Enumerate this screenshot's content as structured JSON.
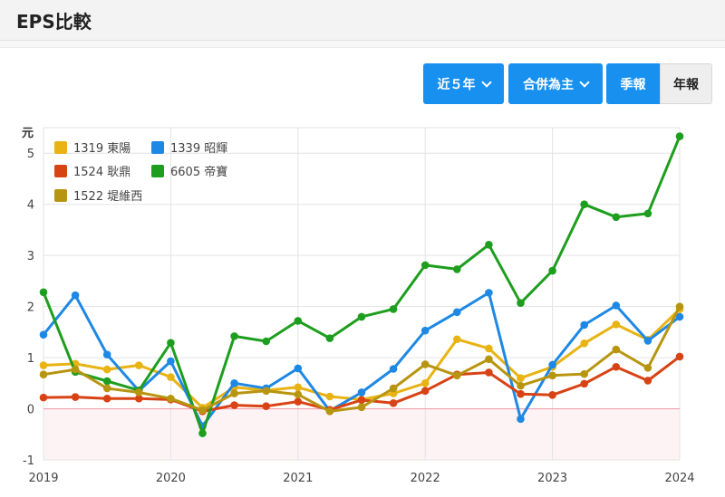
{
  "page": {
    "title": "EPS比較"
  },
  "controls": {
    "period_label": "近５年",
    "basis_label": "合併為主",
    "quarterly_label": "季報",
    "annual_label": "年報"
  },
  "chart_data": {
    "type": "line",
    "ylabel": "元",
    "ylim": [
      -1,
      5.5
    ],
    "yticks": [
      "-1",
      "0",
      "1",
      "2",
      "3",
      "4",
      "5"
    ],
    "xtick_labels": [
      "2019",
      "2020",
      "2021",
      "2022",
      "2023",
      "2024"
    ],
    "x": [
      "2019Q1",
      "2019Q2",
      "2019Q3",
      "2019Q4",
      "2020Q1",
      "2020Q2",
      "2020Q3",
      "2020Q4",
      "2021Q1",
      "2021Q2",
      "2021Q3",
      "2021Q4",
      "2022Q1",
      "2022Q2",
      "2022Q3",
      "2022Q4",
      "2023Q1",
      "2023Q2",
      "2023Q3",
      "2023Q4",
      "2024Q1"
    ],
    "grid": true,
    "legend_position": "top-left",
    "series": [
      {
        "name": "1319 東陽",
        "color": "#e8b313",
        "values": [
          0.85,
          0.88,
          0.77,
          0.85,
          0.62,
          0.02,
          0.42,
          0.36,
          0.42,
          0.24,
          0.18,
          0.3,
          0.5,
          1.36,
          1.18,
          0.6,
          0.82,
          1.28,
          1.65,
          1.35,
          1.95
        ]
      },
      {
        "name": "1339 昭輝",
        "color": "#1e88e5",
        "values": [
          1.45,
          2.22,
          1.06,
          0.35,
          0.93,
          -0.34,
          0.5,
          0.4,
          0.79,
          -0.04,
          0.32,
          0.78,
          1.53,
          1.89,
          2.27,
          -0.2,
          0.86,
          1.64,
          2.02,
          1.33,
          1.8
        ]
      },
      {
        "name": "1524 耿鼎",
        "color": "#d84315",
        "values": [
          0.22,
          0.23,
          0.2,
          0.2,
          0.18,
          -0.05,
          0.07,
          0.05,
          0.14,
          -0.02,
          0.17,
          0.11,
          0.35,
          0.67,
          0.71,
          0.29,
          0.27,
          0.49,
          0.82,
          0.55,
          1.02
        ]
      },
      {
        "name": "6605 帝寶",
        "color": "#1e9e1e",
        "values": [
          2.28,
          0.72,
          0.54,
          0.36,
          1.29,
          -0.48,
          1.42,
          1.32,
          1.72,
          1.38,
          1.8,
          1.95,
          2.81,
          2.73,
          3.21,
          2.07,
          2.7,
          4.0,
          3.75,
          3.82,
          5.33
        ]
      },
      {
        "name": "1522 堤維西",
        "color": "#b89510",
        "values": [
          0.67,
          0.77,
          0.4,
          0.32,
          0.2,
          -0.03,
          0.3,
          0.35,
          0.28,
          -0.05,
          0.03,
          0.4,
          0.87,
          0.65,
          0.97,
          0.45,
          0.65,
          0.68,
          1.16,
          0.8,
          2.0
        ]
      }
    ]
  }
}
